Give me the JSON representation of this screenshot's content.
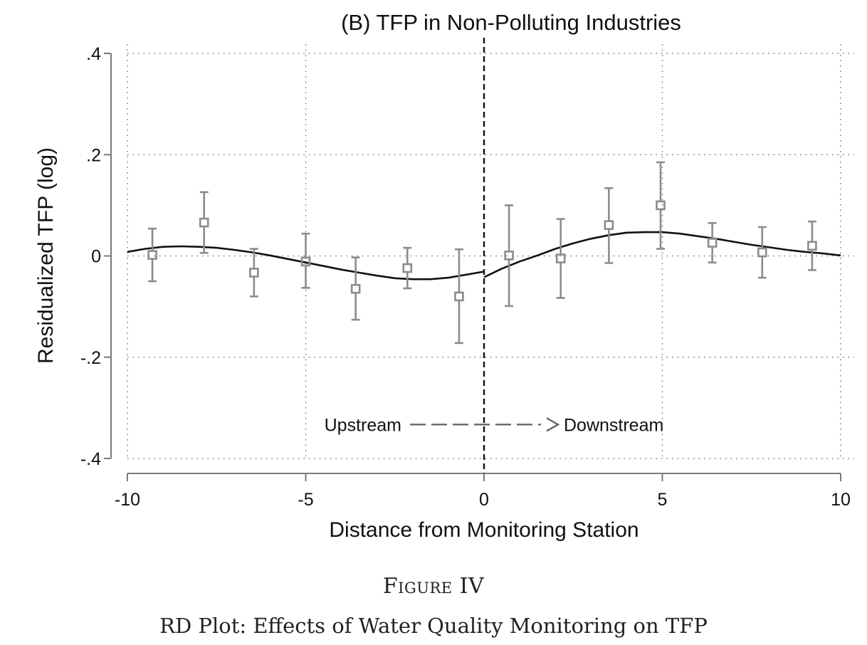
{
  "chart_data": {
    "type": "scatter",
    "title": "(B) TFP in Non-Polluting Industries",
    "xlabel": "Distance from Monitoring Station",
    "ylabel": "Residualized TFP (log)",
    "xlim": [
      -10,
      10
    ],
    "ylim": [
      -0.4,
      0.4
    ],
    "xticks": [
      -10,
      -5,
      0,
      5,
      10
    ],
    "xtick_labels": [
      "-10",
      "-5",
      "0",
      "5",
      "10"
    ],
    "yticks": [
      -0.4,
      -0.2,
      0,
      0.2,
      0.4
    ],
    "ytick_labels": [
      "-.4",
      "-.2",
      "0",
      ".2",
      ".4"
    ],
    "grid": true,
    "cutoff_x": 0,
    "colors": {
      "points": "#8c8c8c",
      "fit": "#111111",
      "grid": "#777777",
      "axis": "#7a7a7a"
    },
    "points": {
      "x": [
        -9.3,
        -7.85,
        -6.45,
        -5.0,
        -3.6,
        -2.15,
        -0.7,
        0.7,
        2.15,
        3.5,
        4.95,
        6.4,
        7.8,
        9.2
      ],
      "y": [
        0.002,
        0.066,
        -0.033,
        -0.011,
        -0.065,
        -0.024,
        -0.08,
        0.001,
        -0.005,
        0.061,
        0.1,
        0.026,
        0.007,
        0.02
      ],
      "ci_low": [
        -0.05,
        0.006,
        -0.08,
        -0.063,
        -0.126,
        -0.064,
        -0.172,
        -0.099,
        -0.083,
        -0.014,
        0.014,
        -0.013,
        -0.043,
        -0.028
      ],
      "ci_high": [
        0.054,
        0.126,
        0.014,
        0.044,
        -0.003,
        0.016,
        0.013,
        0.1,
        0.073,
        0.134,
        0.185,
        0.065,
        0.057,
        0.068
      ]
    },
    "fit_left": {
      "x": [
        -10,
        -9.5,
        -9,
        -8.5,
        -8,
        -7.5,
        -7,
        -6.5,
        -6,
        -5.5,
        -5,
        -4.5,
        -4,
        -3.5,
        -3,
        -2.5,
        -2,
        -1.5,
        -1,
        -0.5,
        0
      ],
      "y": [
        0.008,
        0.014,
        0.018,
        0.019,
        0.018,
        0.016,
        0.012,
        0.007,
        0.001,
        -0.006,
        -0.013,
        -0.02,
        -0.027,
        -0.033,
        -0.039,
        -0.044,
        -0.046,
        -0.046,
        -0.043,
        -0.037,
        -0.031
      ]
    },
    "fit_right": {
      "x": [
        0,
        0.5,
        1,
        1.5,
        2,
        2.5,
        3,
        3.5,
        4,
        4.5,
        5,
        5.5,
        6,
        6.5,
        7,
        7.5,
        8,
        8.5,
        9,
        9.5,
        10
      ],
      "y": [
        -0.042,
        -0.025,
        -0.011,
        0.001,
        0.014,
        0.025,
        0.034,
        0.041,
        0.046,
        0.047,
        0.047,
        0.044,
        0.039,
        0.034,
        0.028,
        0.022,
        0.017,
        0.012,
        0.008,
        0.005,
        0.001
      ]
    },
    "annotation": {
      "left": "Upstream",
      "right": "Downstream",
      "y": -0.333
    }
  },
  "caption": {
    "figure_label": "Figure IV",
    "figure_title": "RD Plot: Effects of Water Quality Monitoring on TFP"
  }
}
